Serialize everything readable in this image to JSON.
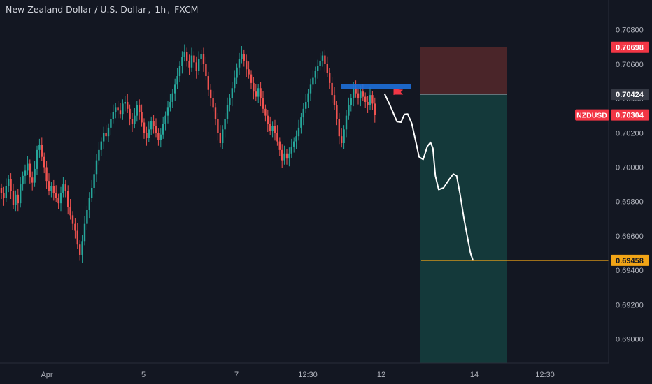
{
  "header": {
    "pair": "New Zealand Dollar / U.S. Dollar",
    "interval": "1h",
    "source": "FXCM"
  },
  "colors": {
    "background": "#131722",
    "up": "#26a69a",
    "down": "#ef5350",
    "axis_text": "#b2b5be",
    "stop_zone": "#4a2529",
    "target_zone": "#14393a",
    "entry_line": "#9598a1",
    "target_line": "#f2a516",
    "projection": "#ffffff",
    "marker": "#1e6fd9",
    "flag": "#f23645"
  },
  "chart_data": {
    "type": "candlestick",
    "symbol": "NZDUSD",
    "ylim": [
      0.6886,
      0.709
    ],
    "y_ticks": [
      "0.70800",
      "0.70600",
      "0.70400",
      "0.70200",
      "0.70000",
      "0.69800",
      "0.69600",
      "0.69400",
      "0.69200",
      "0.69000"
    ],
    "x_ticks": [
      "Apr",
      "5",
      "7",
      "12:30",
      "12",
      "14",
      "12:30"
    ],
    "price_labels": [
      {
        "value": 0.70698,
        "text": "0.70698",
        "style": "stop"
      },
      {
        "value": 0.70424,
        "text": "0.70424",
        "style": "entry"
      },
      {
        "value": 0.70304,
        "text": "0.70304",
        "style": "current",
        "tag": "NZDUSD"
      },
      {
        "value": 0.69458,
        "text": "0.69458",
        "style": "target"
      }
    ],
    "position": {
      "type": "short",
      "entry": 0.70424,
      "stop": 0.70698,
      "target": 0.69458
    },
    "marker_zone": [
      0.70456,
      0.70484
    ],
    "candle_closes": [
      0.6985,
      0.6982,
      0.6989,
      0.6993,
      0.6986,
      0.6978,
      0.6984,
      0.6979,
      0.699,
      0.6995,
      0.6998,
      0.7002,
      0.6994,
      0.6991,
      0.6999,
      0.701,
      0.7013,
      0.7006,
      0.7,
      0.6992,
      0.6986,
      0.6989,
      0.6985,
      0.6982,
      0.6979,
      0.6985,
      0.699,
      0.6986,
      0.6977,
      0.6972,
      0.6967,
      0.6963,
      0.6955,
      0.6949,
      0.6957,
      0.6967,
      0.6975,
      0.6982,
      0.6988,
      0.6996,
      0.7004,
      0.701,
      0.7015,
      0.702,
      0.7018,
      0.7023,
      0.7028,
      0.7032,
      0.7035,
      0.7033,
      0.7031,
      0.7037,
      0.7038,
      0.7034,
      0.7028,
      0.7025,
      0.703,
      0.7036,
      0.7032,
      0.7026,
      0.702,
      0.7017,
      0.7022,
      0.7027,
      0.7024,
      0.702,
      0.7016,
      0.7019,
      0.7025,
      0.703,
      0.7035,
      0.7038,
      0.7043,
      0.7048,
      0.7053,
      0.7059,
      0.7064,
      0.7067,
      0.7062,
      0.7058,
      0.7065,
      0.7061,
      0.7056,
      0.7063,
      0.7066,
      0.706,
      0.7053,
      0.7045,
      0.704,
      0.7035,
      0.7028,
      0.702,
      0.7014,
      0.7022,
      0.7028,
      0.7036,
      0.704,
      0.7046,
      0.7052,
      0.7058,
      0.7063,
      0.7066,
      0.7062,
      0.7057,
      0.7054,
      0.7049,
      0.7044,
      0.7041,
      0.7046,
      0.704,
      0.7034,
      0.703,
      0.7025,
      0.7021,
      0.7024,
      0.702,
      0.7015,
      0.701,
      0.7004,
      0.7008,
      0.7005,
      0.7008,
      0.7012,
      0.7015,
      0.7018,
      0.7023,
      0.7029,
      0.7034,
      0.7038,
      0.7043,
      0.7048,
      0.7052,
      0.7056,
      0.7059,
      0.7062,
      0.7065,
      0.706,
      0.7055,
      0.7049,
      0.7042,
      0.7036,
      0.7028,
      0.7018,
      0.7014,
      0.7022,
      0.703,
      0.7036,
      0.704,
      0.7046,
      0.7043,
      0.704,
      0.7044,
      0.7041,
      0.7038,
      0.7036,
      0.7042,
      0.7037,
      0.70304
    ],
    "projection_path": [
      {
        "t": 0,
        "p": 0.70425
      },
      {
        "t": 6,
        "p": 0.70365
      },
      {
        "t": 10,
        "p": 0.7032
      },
      {
        "t": 15,
        "p": 0.70265
      },
      {
        "t": 20,
        "p": 0.70262
      },
      {
        "t": 24,
        "p": 0.70308
      },
      {
        "t": 28,
        "p": 0.7031
      },
      {
        "t": 33,
        "p": 0.70255
      },
      {
        "t": 38,
        "p": 0.7015
      },
      {
        "t": 42,
        "p": 0.7006
      },
      {
        "t": 47,
        "p": 0.70045
      },
      {
        "t": 52,
        "p": 0.7012
      },
      {
        "t": 56,
        "p": 0.70145
      },
      {
        "t": 59,
        "p": 0.7011
      },
      {
        "t": 62,
        "p": 0.6995
      },
      {
        "t": 66,
        "p": 0.6987
      },
      {
        "t": 72,
        "p": 0.6988
      },
      {
        "t": 79,
        "p": 0.6993
      },
      {
        "t": 84,
        "p": 0.6996
      },
      {
        "t": 88,
        "p": 0.6995
      },
      {
        "t": 92,
        "p": 0.6985
      },
      {
        "t": 97,
        "p": 0.697
      },
      {
        "t": 101,
        "p": 0.696
      },
      {
        "t": 105,
        "p": 0.695
      },
      {
        "t": 108,
        "p": 0.69458
      }
    ]
  }
}
